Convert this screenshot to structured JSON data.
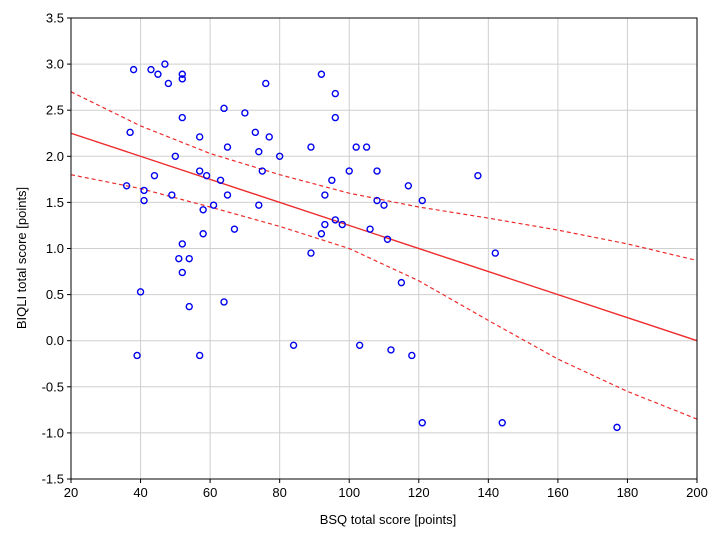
{
  "chart_data": {
    "type": "scatter",
    "title": "",
    "xlabel": "BSQ total score [points]",
    "ylabel": "BIQLI total score [points]",
    "xlim": [
      20,
      200
    ],
    "ylim": [
      -1.5,
      3.5
    ],
    "xticks": [
      20,
      40,
      60,
      80,
      100,
      120,
      140,
      160,
      180,
      200
    ],
    "yticks": [
      -1.5,
      -1.0,
      -0.5,
      0.0,
      0.5,
      1.0,
      1.5,
      2.0,
      2.5,
      3.0,
      3.5
    ],
    "xtick_labels": [
      "20",
      "40",
      "60",
      "80",
      "100",
      "120",
      "140",
      "160",
      "180",
      "200"
    ],
    "ytick_labels": [
      "-1.5",
      "-1.0",
      "-0.5",
      "0.0",
      "0.5",
      "1.0",
      "1.5",
      "2.0",
      "2.5",
      "3.0",
      "3.5"
    ],
    "grid": true,
    "colors": {
      "points": "#0000ee",
      "regression": "#ee2b2b",
      "grid": "#cfcfcf",
      "frame": "#000000"
    },
    "points": [
      [
        38,
        2.94
      ],
      [
        43,
        2.94
      ],
      [
        47,
        3.0
      ],
      [
        45,
        2.89
      ],
      [
        52,
        2.89
      ],
      [
        52,
        2.84
      ],
      [
        48,
        2.79
      ],
      [
        76,
        2.79
      ],
      [
        92,
        2.89
      ],
      [
        96,
        2.68
      ],
      [
        37,
        2.26
      ],
      [
        52,
        2.42
      ],
      [
        64,
        2.52
      ],
      [
        70,
        2.47
      ],
      [
        96,
        2.42
      ],
      [
        57,
        2.21
      ],
      [
        73,
        2.26
      ],
      [
        77,
        2.21
      ],
      [
        65,
        2.1
      ],
      [
        74,
        2.05
      ],
      [
        89,
        2.1
      ],
      [
        102,
        2.1
      ],
      [
        105,
        2.1
      ],
      [
        50,
        2.0
      ],
      [
        80,
        2.0
      ],
      [
        75,
        1.84
      ],
      [
        57,
        1.84
      ],
      [
        59,
        1.79
      ],
      [
        100,
        1.84
      ],
      [
        108,
        1.84
      ],
      [
        44,
        1.79
      ],
      [
        63,
        1.74
      ],
      [
        95,
        1.74
      ],
      [
        117,
        1.68
      ],
      [
        137,
        1.79
      ],
      [
        36,
        1.68
      ],
      [
        41,
        1.63
      ],
      [
        41,
        1.52
      ],
      [
        49,
        1.58
      ],
      [
        65,
        1.58
      ],
      [
        93,
        1.58
      ],
      [
        61,
        1.47
      ],
      [
        74,
        1.47
      ],
      [
        108,
        1.52
      ],
      [
        110,
        1.47
      ],
      [
        121,
        1.52
      ],
      [
        58,
        1.42
      ],
      [
        96,
        1.31
      ],
      [
        93,
        1.26
      ],
      [
        98,
        1.26
      ],
      [
        67,
        1.21
      ],
      [
        58,
        1.16
      ],
      [
        92,
        1.16
      ],
      [
        106,
        1.21
      ],
      [
        111,
        1.1
      ],
      [
        52,
        1.05
      ],
      [
        89,
        0.95
      ],
      [
        142,
        0.95
      ],
      [
        51,
        0.89
      ],
      [
        54,
        0.89
      ],
      [
        52,
        0.74
      ],
      [
        115,
        0.63
      ],
      [
        40,
        0.53
      ],
      [
        64,
        0.42
      ],
      [
        54,
        0.37
      ],
      [
        84,
        -0.05
      ],
      [
        103,
        -0.05
      ],
      [
        112,
        -0.1
      ],
      [
        39,
        -0.16
      ],
      [
        57,
        -0.16
      ],
      [
        118,
        -0.16
      ],
      [
        121,
        -0.89
      ],
      [
        144,
        -0.89
      ],
      [
        177,
        -0.94
      ]
    ],
    "regression": {
      "x": [
        20,
        200
      ],
      "y": [
        2.25,
        0.0
      ]
    },
    "confidence_band": {
      "x": [
        20,
        40,
        60,
        80,
        100,
        120,
        140,
        160,
        180,
        200
      ],
      "upper": [
        2.7,
        2.33,
        2.03,
        1.8,
        1.6,
        1.45,
        1.33,
        1.2,
        1.05,
        0.87
      ],
      "lower": [
        1.8,
        1.65,
        1.45,
        1.24,
        1.0,
        0.65,
        0.22,
        -0.2,
        -0.55,
        -0.85
      ]
    }
  }
}
